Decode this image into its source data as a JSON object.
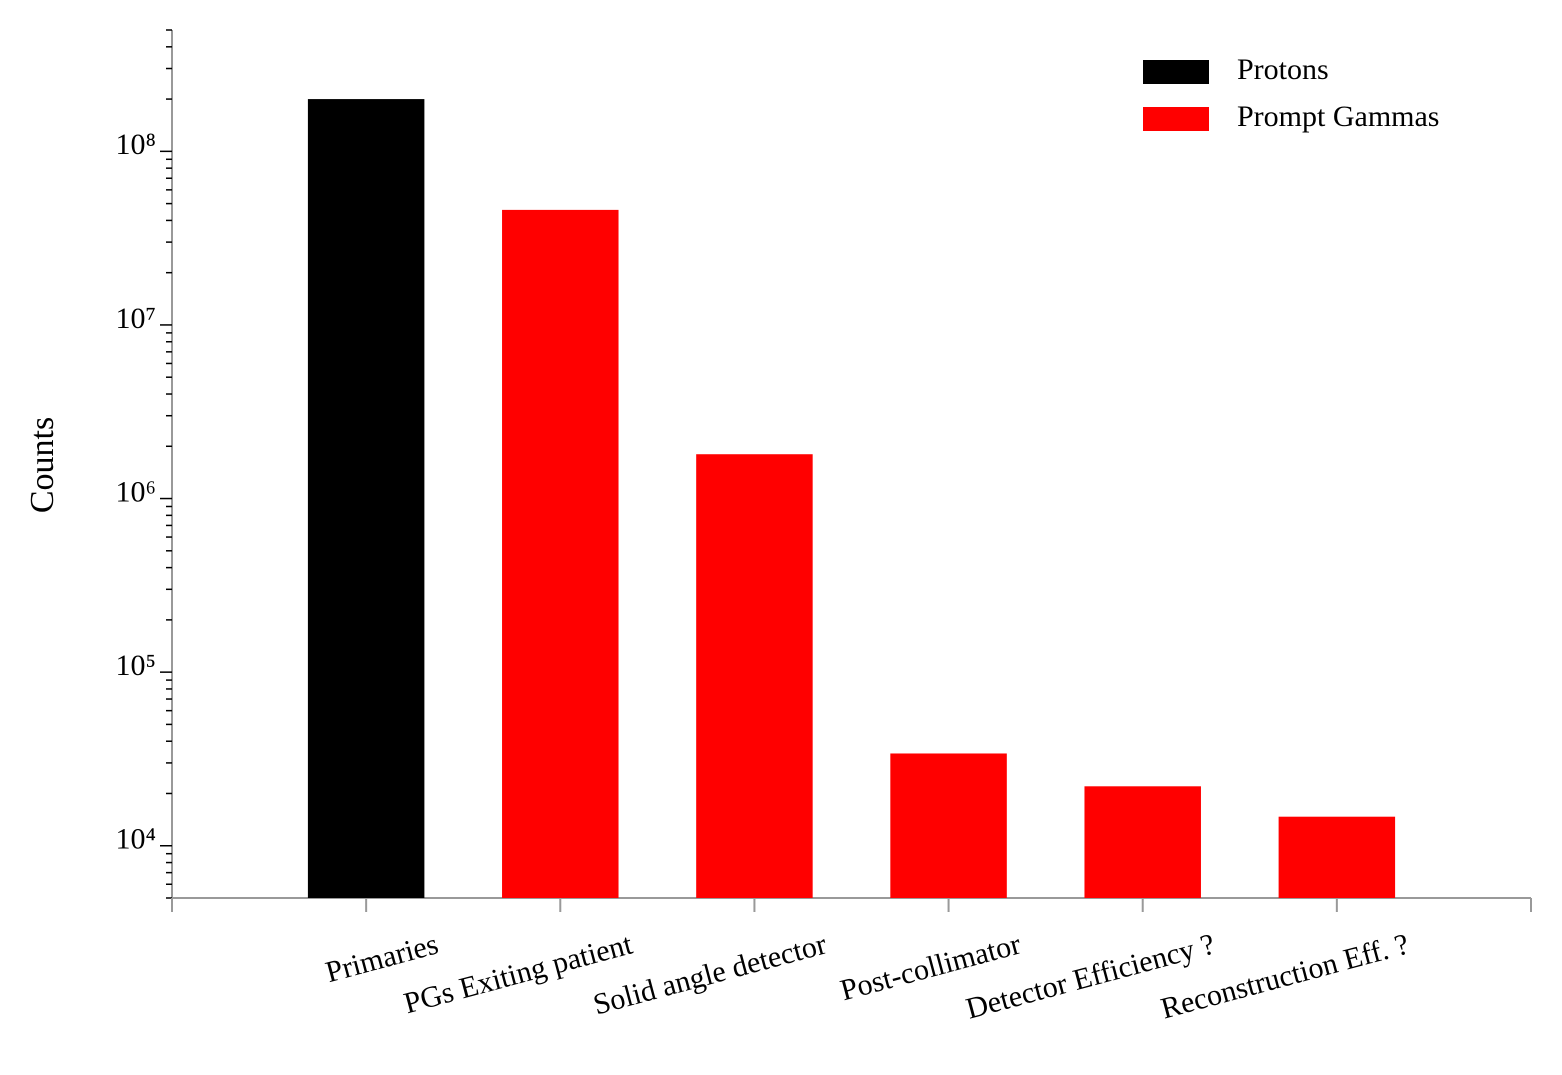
{
  "chart_data": {
    "type": "bar",
    "ylabel": "Counts",
    "log_y": true,
    "legend": "upper right",
    "categories": [
      "Primaries",
      "PGs Exiting patient",
      "Solid angle detector",
      "Post-collimator",
      "Detector Efficiency ?",
      "Reconstruction Eff. ?"
    ],
    "series": [
      {
        "name": "Protons",
        "color": "#000000",
        "values": [
          200000000,
          null,
          null,
          null,
          null,
          null
        ]
      },
      {
        "name": "Prompt Gammas",
        "color": "#ff0000",
        "values": [
          null,
          46000000,
          1800000,
          34000,
          22000,
          14700
        ]
      }
    ],
    "ylim": [
      5000,
      500000000
    ],
    "yticks": [
      {
        "value": 10000,
        "label": "10⁴"
      },
      {
        "value": 100000,
        "label": "10⁵"
      },
      {
        "value": 1000000,
        "label": "10⁶"
      },
      {
        "value": 10000000,
        "label": "10⁷"
      },
      {
        "value": 100000000,
        "label": "10⁸"
      }
    ]
  }
}
